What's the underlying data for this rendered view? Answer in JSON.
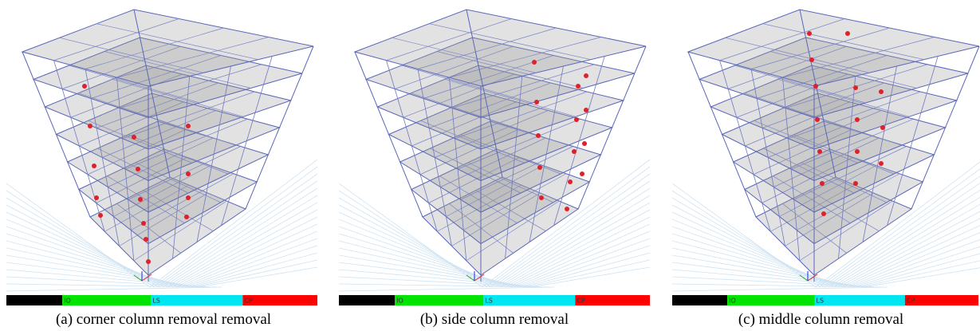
{
  "panels": [
    {
      "caption": "(a) corner column removal removal"
    },
    {
      "caption": "(b) side column removal"
    },
    {
      "caption": "(c) middle column removal"
    }
  ],
  "legend": {
    "labels": [
      "IO",
      "LS",
      "CP"
    ]
  }
}
